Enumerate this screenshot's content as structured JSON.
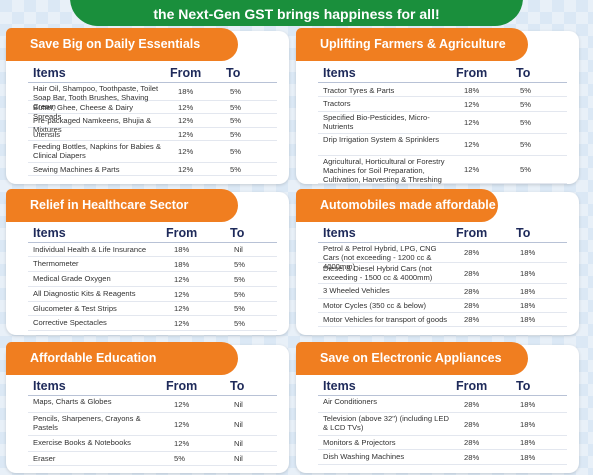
{
  "banner": {
    "text": "the Next-Gen GST brings happiness for all!"
  },
  "columns": {
    "items": "Items",
    "from": "From",
    "to": "To"
  },
  "sections": [
    {
      "title": "Save Big on Daily Essentials",
      "rows": [
        {
          "item": "Hair Oil, Shampoo, Toothpaste, Toilet Soap Bar, Tooth Brushes, Shaving Cream",
          "from": "18%",
          "to": "5%"
        },
        {
          "item": "Butter, Ghee, Cheese & Dairy Spreads",
          "from": "12%",
          "to": "5%"
        },
        {
          "item": "Pre-packaged Namkeens, Bhujia & Mixtures",
          "from": "12%",
          "to": "5%"
        },
        {
          "item": "Utensils",
          "from": "12%",
          "to": "5%"
        },
        {
          "item": "Feeding Bottles, Napkins for Babies & Clinical Diapers",
          "from": "12%",
          "to": "5%"
        },
        {
          "item": "Sewing Machines & Parts",
          "from": "12%",
          "to": "5%"
        }
      ]
    },
    {
      "title": "Uplifting Farmers & Agriculture",
      "rows": [
        {
          "item": "Tractor Tyres & Parts",
          "from": "18%",
          "to": "5%"
        },
        {
          "item": "Tractors",
          "from": "12%",
          "to": "5%"
        },
        {
          "item": "Specified Bio-Pesticides, Micro-Nutrients",
          "from": "12%",
          "to": "5%"
        },
        {
          "item": "Drip Irrigation System & Sprinklers",
          "from": "12%",
          "to": "5%"
        },
        {
          "item": "Agricultural, Horticultural or Forestry Machines for Soil Preparation, Cultivation, Harvesting & Threshing",
          "from": "12%",
          "to": "5%"
        }
      ]
    },
    {
      "title": "Relief in Healthcare Sector",
      "rows": [
        {
          "item": "Individual Health & Life Insurance",
          "from": "18%",
          "to": "Nil"
        },
        {
          "item": "Thermometer",
          "from": "18%",
          "to": "5%"
        },
        {
          "item": "Medical Grade Oxygen",
          "from": "12%",
          "to": "5%"
        },
        {
          "item": "All Diagnostic Kits & Reagents",
          "from": "12%",
          "to": "5%"
        },
        {
          "item": "Glucometer & Test Strips",
          "from": "12%",
          "to": "5%"
        },
        {
          "item": "Corrective Spectacles",
          "from": "12%",
          "to": "5%"
        }
      ]
    },
    {
      "title": "Automobiles made affordable",
      "rows": [
        {
          "item": "Petrol & Petrol Hybrid, LPG, CNG Cars (not exceeding - 1200 cc & 4000mm)",
          "from": "28%",
          "to": "18%"
        },
        {
          "item": "Diesel & Diesel Hybrid Cars (not exceeding - 1500 cc & 4000mm)",
          "from": "28%",
          "to": "18%"
        },
        {
          "item": "3 Wheeled Vehicles",
          "from": "28%",
          "to": "18%"
        },
        {
          "item": "Motor Cycles (350 cc & below)",
          "from": "28%",
          "to": "18%"
        },
        {
          "item": "Motor Vehicles for transport of goods",
          "from": "28%",
          "to": "18%"
        }
      ]
    },
    {
      "title": "Affordable Education",
      "rows": [
        {
          "item": "Maps, Charts & Globes",
          "from": "12%",
          "to": "Nil"
        },
        {
          "item": "Pencils, Sharpeners, Crayons & Pastels",
          "from": "12%",
          "to": "Nil"
        },
        {
          "item": "Exercise Books & Notebooks",
          "from": "12%",
          "to": "Nil"
        },
        {
          "item": "Eraser",
          "from": "5%",
          "to": "Nil"
        }
      ]
    },
    {
      "title": "Save on Electronic Appliances",
      "rows": [
        {
          "item": "Air Conditioners",
          "from": "28%",
          "to": "18%"
        },
        {
          "item": "Television (above 32\") (including LED & LCD TVs)",
          "from": "28%",
          "to": "18%"
        },
        {
          "item": "Monitors & Projectors",
          "from": "28%",
          "to": "18%"
        },
        {
          "item": "Dish Washing Machines",
          "from": "28%",
          "to": "18%"
        }
      ]
    }
  ]
}
